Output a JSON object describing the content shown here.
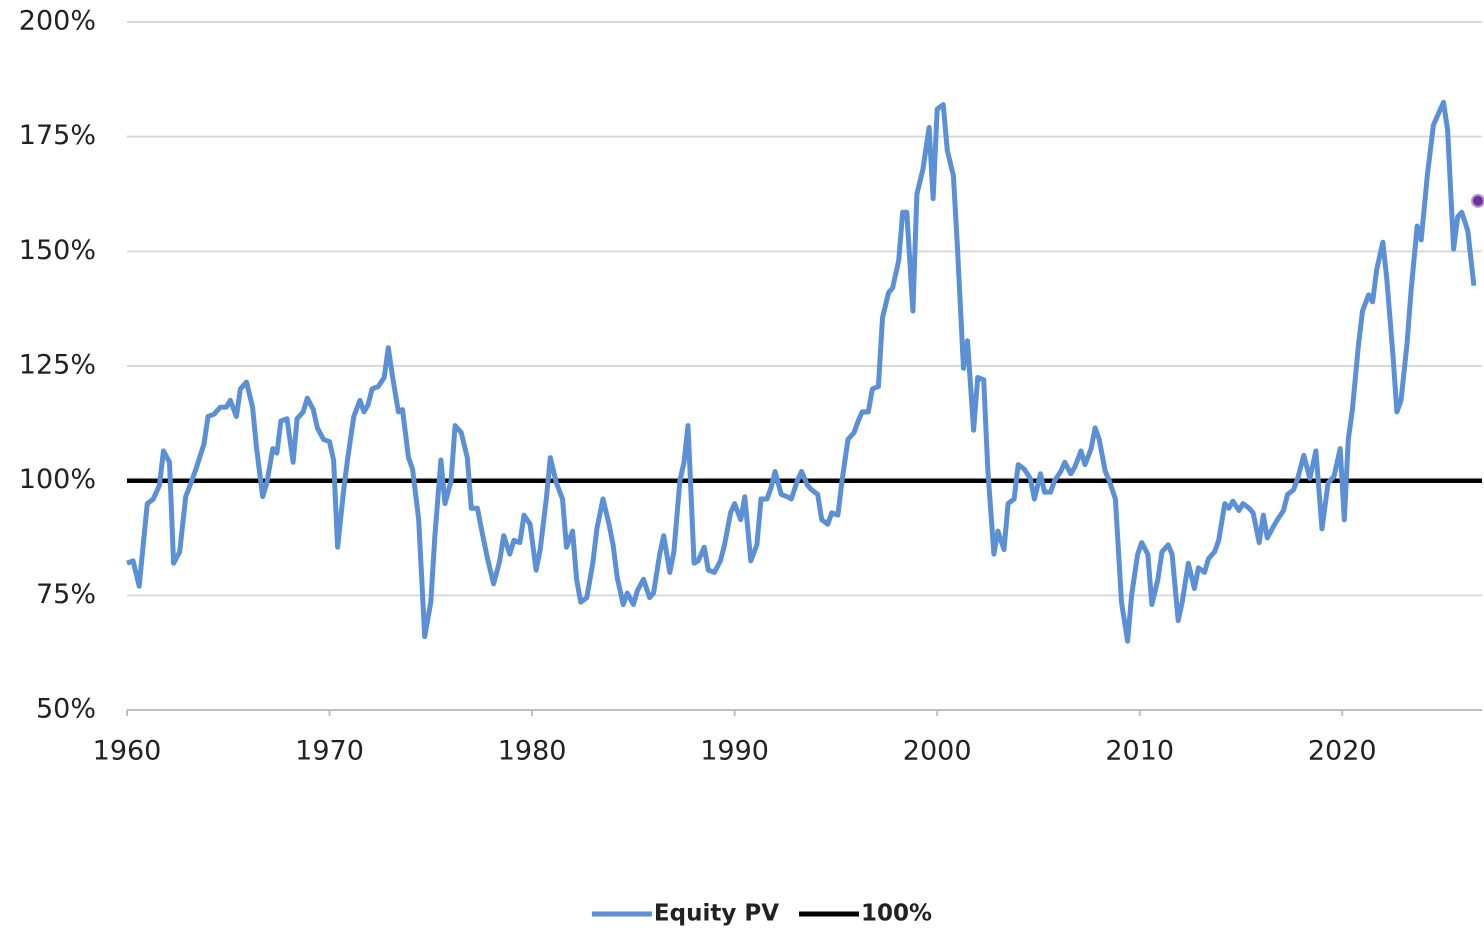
{
  "chart_data": {
    "type": "line",
    "xlim": [
      1960,
      2026.9
    ],
    "xticks": [
      1960,
      1970,
      1980,
      1990,
      2000,
      2010,
      2020
    ],
    "ylim": [
      50,
      200
    ],
    "yticks": [
      {
        "value": 50,
        "label": "50%"
      },
      {
        "value": 75,
        "label": "75%"
      },
      {
        "value": 100,
        "label": "100%"
      },
      {
        "value": 125,
        "label": "125%"
      },
      {
        "value": 150,
        "label": "150%"
      },
      {
        "value": 175,
        "label": "175%"
      },
      {
        "value": 200,
        "label": "200%"
      }
    ],
    "grid": true,
    "legend": "bottom",
    "series": [
      {
        "name": "Equity PV",
        "color": "#5b8fd6",
        "x": [
          1960.0,
          1960.3,
          1960.6,
          1960.8,
          1961.0,
          1961.3,
          1961.6,
          1961.8,
          1962.1,
          1962.3,
          1962.6,
          1962.9,
          1963.2,
          1963.4,
          1963.8,
          1964.0,
          1964.3,
          1964.6,
          1964.9,
          1965.1,
          1965.4,
          1965.6,
          1965.9,
          1966.2,
          1966.4,
          1966.7,
          1966.9,
          1967.2,
          1967.4,
          1967.6,
          1967.9,
          1968.2,
          1968.4,
          1968.7,
          1968.9,
          1969.2,
          1969.4,
          1969.7,
          1970.0,
          1970.2,
          1970.4,
          1970.7,
          1970.9,
          1971.2,
          1971.5,
          1971.7,
          1971.9,
          1972.1,
          1972.4,
          1972.7,
          1972.9,
          1973.1,
          1973.4,
          1973.6,
          1973.9,
          1974.1,
          1974.4,
          1974.7,
          1975.0,
          1975.2,
          1975.5,
          1975.7,
          1976.0,
          1976.2,
          1976.5,
          1976.8,
          1977.0,
          1977.3,
          1977.5,
          1977.8,
          1978.1,
          1978.4,
          1978.6,
          1978.9,
          1979.1,
          1979.4,
          1979.6,
          1979.9,
          1980.2,
          1980.4,
          1980.7,
          1980.9,
          1981.2,
          1981.5,
          1981.7,
          1982.0,
          1982.2,
          1982.4,
          1982.7,
          1983.0,
          1983.2,
          1983.5,
          1983.8,
          1984.0,
          1984.2,
          1984.5,
          1984.7,
          1985.0,
          1985.2,
          1985.5,
          1985.8,
          1986.0,
          1986.3,
          1986.5,
          1986.8,
          1987.0,
          1987.3,
          1987.5,
          1987.7,
          1988.0,
          1988.2,
          1988.5,
          1988.7,
          1989.0,
          1989.3,
          1989.5,
          1989.8,
          1990.0,
          1990.3,
          1990.5,
          1990.8,
          1991.1,
          1991.3,
          1991.6,
          1991.8,
          1992.0,
          1992.3,
          1992.6,
          1992.8,
          1993.1,
          1993.3,
          1993.6,
          1993.8,
          1994.1,
          1994.3,
          1994.6,
          1994.8,
          1995.1,
          1995.3,
          1995.6,
          1995.9,
          1996.1,
          1996.3,
          1996.6,
          1996.8,
          1997.1,
          1997.3,
          1997.6,
          1997.8,
          1998.1,
          1998.3,
          1998.5,
          1998.8,
          1999.0,
          1999.3,
          1999.6,
          1999.8,
          2000.0,
          2000.3,
          2000.5,
          2000.8,
          2001.0,
          2001.3,
          2001.5,
          2001.8,
          2002.0,
          2002.3,
          2002.5,
          2002.8,
          2003.0,
          2003.3,
          2003.5,
          2003.8,
          2004.0,
          2004.3,
          2004.6,
          2004.8,
          2005.1,
          2005.3,
          2005.6,
          2005.8,
          2006.1,
          2006.3,
          2006.6,
          2006.8,
          2007.1,
          2007.3,
          2007.6,
          2007.8,
          2008.0,
          2008.3,
          2008.5,
          2008.8,
          2009.1,
          2009.4,
          2009.6,
          2009.9,
          2010.1,
          2010.4,
          2010.6,
          2010.9,
          2011.1,
          2011.4,
          2011.6,
          2011.9,
          2012.1,
          2012.4,
          2012.7,
          2012.9,
          2013.2,
          2013.4,
          2013.7,
          2013.9,
          2014.2,
          2014.4,
          2014.6,
          2014.9,
          2015.1,
          2015.4,
          2015.6,
          2015.9,
          2016.1,
          2016.3,
          2016.6,
          2016.8,
          2017.1,
          2017.3,
          2017.6,
          2017.8,
          2018.1,
          2018.4,
          2018.7,
          2019.0,
          2019.3,
          2019.6,
          2019.9,
          2020.1,
          2020.3,
          2020.5,
          2020.8,
          2021.0,
          2021.3,
          2021.5,
          2021.7,
          2022.0,
          2022.2,
          2022.5,
          2022.7,
          2022.9,
          2023.2,
          2023.4,
          2023.7,
          2023.9,
          2024.2,
          2024.5,
          2024.7,
          2025.0,
          2025.2,
          2025.5,
          2025.7,
          2025.9,
          2026.2,
          2026.5
        ],
        "values": [
          82,
          82.5,
          77,
          86,
          95,
          96,
          99,
          106.5,
          104,
          82,
          84.5,
          96.5,
          100,
          102.5,
          108,
          114,
          114.5,
          116,
          116,
          117.5,
          114,
          120,
          121.5,
          116,
          107,
          96.5,
          99.5,
          107,
          106,
          113,
          113.5,
          104,
          113.5,
          115,
          118,
          115.5,
          111.5,
          109,
          108.5,
          104.5,
          85.5,
          98,
          105,
          114,
          117.5,
          115,
          116.5,
          120,
          120.5,
          122.5,
          129,
          123,
          115,
          115.5,
          105,
          102.5,
          91.5,
          66,
          73.5,
          88,
          104.5,
          95,
          100,
          112,
          110.5,
          105,
          94,
          94,
          89.5,
          83,
          77.5,
          82.5,
          88,
          84,
          87,
          86.5,
          92.5,
          90.5,
          80.5,
          85,
          96,
          105,
          99.5,
          96,
          85.5,
          89,
          78.5,
          73.5,
          74.5,
          82,
          89.5,
          96,
          90.5,
          86,
          79,
          73,
          75.5,
          73,
          76,
          78.5,
          74.5,
          75.5,
          84,
          88,
          80,
          84.5,
          100,
          104,
          112,
          82,
          82.5,
          85.5,
          80.5,
          80,
          82.5,
          86,
          93,
          95,
          91.5,
          96.5,
          82.5,
          86,
          96,
          96,
          98.5,
          102,
          97,
          96.5,
          96,
          100,
          102,
          99,
          98,
          97,
          91.5,
          90.5,
          93,
          92.5,
          100,
          109,
          110.5,
          113,
          115,
          115,
          120,
          120.5,
          135.5,
          141,
          142,
          148,
          158.5,
          158.5,
          137,
          162.5,
          168,
          177,
          161.5,
          181,
          182,
          172,
          166.5,
          151,
          124.5,
          130.5,
          111,
          122.5,
          122,
          102.5,
          84,
          89,
          85,
          95,
          96,
          103.5,
          102.5,
          100.5,
          96,
          101.5,
          97.5,
          97.5,
          100,
          102,
          104,
          101.5,
          103,
          106.5,
          103.5,
          107,
          111.5,
          109,
          102,
          100,
          96,
          73.5,
          65,
          75,
          84,
          86.5,
          84,
          73,
          78.5,
          84.5,
          86,
          84,
          69.5,
          73.5,
          82,
          76.5,
          81,
          80,
          83,
          84.5,
          87,
          95,
          94,
          95.5,
          93.5,
          95,
          94,
          93,
          86.5,
          92.5,
          87.5,
          90,
          91.5,
          93.5,
          97,
          98,
          100.5,
          105.5,
          100.5,
          106.5,
          89.5,
          99.5,
          101,
          107,
          91.5,
          109,
          115.5,
          129.5,
          137,
          140.5,
          139,
          146,
          152,
          144,
          127.5,
          115,
          117.5,
          130,
          141.5,
          155.5,
          152.5,
          166.5,
          177.5,
          179.5,
          182.5,
          176.5,
          150.5,
          157.5,
          158.5,
          154.5,
          142.5
        ]
      },
      {
        "name": "100%",
        "color": "#000000",
        "x": [
          1960,
          2026.9
        ],
        "values": [
          100,
          100
        ]
      }
    ],
    "latest_point": {
      "x": 2026.7,
      "value": 161,
      "color": "#7030a0"
    }
  }
}
